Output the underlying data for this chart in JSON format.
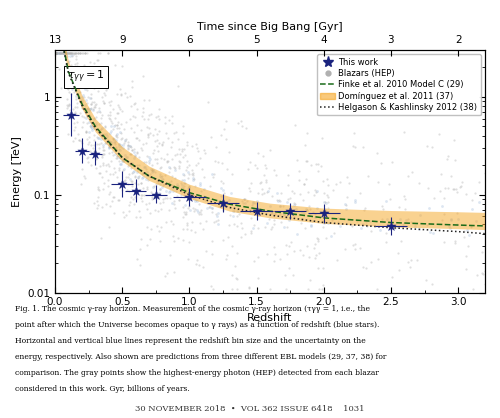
{
  "xlabel": "Redshift",
  "ylabel": "Energy [TeV]",
  "xlabel2": "Time since Big Bang [Gyr]",
  "xlim": [
    0,
    3.2
  ],
  "ylim_log": [
    0.01,
    3.0
  ],
  "tau_label": "$\\tau_{\\gamma\\gamma} = 1$",
  "this_work_x": [
    0.12,
    0.2,
    0.3,
    0.5,
    0.6,
    0.75,
    1.0,
    1.25,
    1.5,
    1.75,
    2.0,
    2.5
  ],
  "this_work_y": [
    0.65,
    0.28,
    0.26,
    0.13,
    0.11,
    0.1,
    0.095,
    0.083,
    0.068,
    0.068,
    0.065,
    0.048
  ],
  "this_work_xerr": [
    0.06,
    0.05,
    0.05,
    0.08,
    0.08,
    0.08,
    0.12,
    0.12,
    0.12,
    0.12,
    0.12,
    0.12
  ],
  "this_work_yerr_lo": [
    0.25,
    0.07,
    0.06,
    0.035,
    0.025,
    0.018,
    0.018,
    0.016,
    0.013,
    0.011,
    0.013,
    0.009
  ],
  "this_work_yerr_hi": [
    0.45,
    0.1,
    0.09,
    0.045,
    0.035,
    0.025,
    0.022,
    0.019,
    0.016,
    0.014,
    0.015,
    0.011
  ],
  "finke_x": [
    0.005,
    0.05,
    0.1,
    0.2,
    0.3,
    0.5,
    0.7,
    1.0,
    1.3,
    1.6,
    2.0,
    2.5,
    3.0,
    3.2
  ],
  "finke_y": [
    30.0,
    4.0,
    1.8,
    0.85,
    0.5,
    0.24,
    0.155,
    0.105,
    0.08,
    0.068,
    0.058,
    0.052,
    0.049,
    0.048
  ],
  "dominguez_x": [
    0.005,
    0.05,
    0.1,
    0.2,
    0.3,
    0.5,
    0.7,
    1.0,
    1.3,
    1.6,
    2.0,
    2.5,
    3.0,
    3.2
  ],
  "dominguez_y": [
    32.0,
    4.5,
    2.0,
    0.9,
    0.52,
    0.265,
    0.168,
    0.11,
    0.082,
    0.07,
    0.062,
    0.058,
    0.056,
    0.055
  ],
  "dominguez_y_lo": [
    28.0,
    3.8,
    1.7,
    0.76,
    0.44,
    0.22,
    0.14,
    0.092,
    0.068,
    0.058,
    0.051,
    0.047,
    0.045,
    0.044
  ],
  "dominguez_y_hi": [
    36.0,
    5.2,
    2.3,
    1.04,
    0.6,
    0.31,
    0.196,
    0.128,
    0.096,
    0.082,
    0.073,
    0.069,
    0.067,
    0.066
  ],
  "helgason_x": [
    0.005,
    0.05,
    0.1,
    0.2,
    0.3,
    0.5,
    0.7,
    1.0,
    1.3,
    1.6,
    2.0,
    2.5,
    3.0,
    3.2
  ],
  "helgason_y": [
    28.0,
    3.8,
    1.75,
    0.82,
    0.48,
    0.24,
    0.155,
    0.1,
    0.074,
    0.062,
    0.052,
    0.046,
    0.042,
    0.04
  ],
  "blazar_seed": 12345,
  "top_axis_ticks": [
    0,
    0.5,
    1.0,
    1.5,
    2.0,
    2.5,
    3.0
  ],
  "top_axis_labels": [
    "13",
    "9",
    "6",
    "5",
    "4",
    "3",
    "2"
  ],
  "star_color": "#1a237e",
  "finke_color": "#1a6b1a",
  "dominguez_color": "#f5a623",
  "helgason_color": "#222222",
  "blazar_color": "#b0b0b0",
  "blazar_blue_color": "#9bb8d8",
  "bg_color": "#ffffff",
  "caption_line1": "Fig. 1. The cosmic γ-ray horizon. Measurement of the cosmic γ-ray horizon (τγγ = 1, i.e., the",
  "caption_line2": "point after which the Universe becomes opaque to γ rays) as a function of redshift (blue stars).",
  "caption_line3": "Horizontal and vertical blue lines represent the redshift bin size and the uncertainty on the",
  "caption_line4": "energy, respectively. Also shown are predictions from three different EBL models (29, 37, 38) for",
  "caption_line5": "comparison. The gray points show the highest-energy photon (HEP) detected from each blazar",
  "caption_line6": "considered in this work. Gyr, billions of years.",
  "footer_text": "30 NOVEMBER 2018  •  VOL 362 ISSUE 6418    1031"
}
